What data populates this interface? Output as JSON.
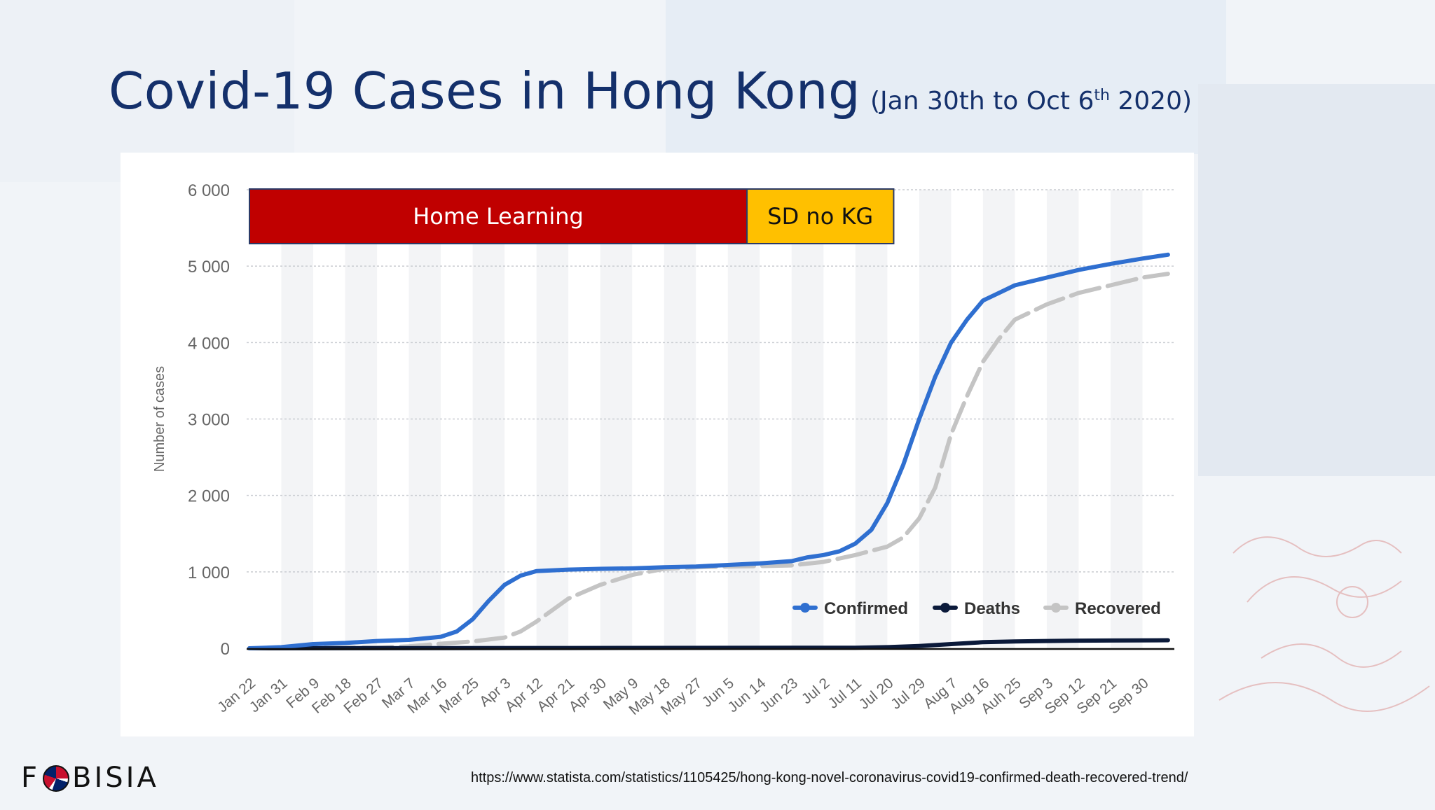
{
  "slide": {
    "title": "Covid-19 Cases in Hong Kong",
    "subtitle_main": "(Jan 30th to Oct 6",
    "subtitle_sup": "th",
    "subtitle_end": " 2020)",
    "logo_left": "F",
    "logo_right": "BISIA",
    "source_url": "https://www.statista.com/statistics/1105425/hong-kong-novel-coronavirus-covid19-confirmed-death-recovered-trend/"
  },
  "chart_data": {
    "type": "line",
    "title": "",
    "xlabel": "",
    "ylabel": "Number of cases",
    "ylim": [
      0,
      6000
    ],
    "y_ticks": [
      0,
      1000,
      2000,
      3000,
      4000,
      5000,
      6000
    ],
    "y_tick_labels": [
      "0",
      "1 000",
      "2 000",
      "3 000",
      "4 000",
      "5 000",
      "6 000"
    ],
    "categories": [
      "Jan 22",
      "Jan 31",
      "Feb 9",
      "Feb 18",
      "Feb 27",
      "Mar 7",
      "Mar 16",
      "Mar 25",
      "Apr 3",
      "Apr 12",
      "Apr 21",
      "Apr 30",
      "May 9",
      "May 18",
      "May 27",
      "Jun 5",
      "Jun 14",
      "Jun 23",
      "Jul 2",
      "Jul 11",
      "Jul 20",
      "Jul 29",
      "Aug 7",
      "Aug 16",
      "Auh 25",
      "Sep 3",
      "Sep 12",
      "Sep 21",
      "Sep 30"
    ],
    "series": [
      {
        "name": "Confirmed",
        "color": "#2f6fd0",
        "dash": false,
        "points": [
          [
            0,
            0
          ],
          [
            1,
            15
          ],
          [
            2,
            55
          ],
          [
            3,
            70
          ],
          [
            4,
            95
          ],
          [
            5,
            110
          ],
          [
            6,
            150
          ],
          [
            6.5,
            220
          ],
          [
            7,
            380
          ],
          [
            7.5,
            620
          ],
          [
            8,
            830
          ],
          [
            8.5,
            950
          ],
          [
            9,
            1010
          ],
          [
            10,
            1030
          ],
          [
            11,
            1040
          ],
          [
            12,
            1045
          ],
          [
            13,
            1060
          ],
          [
            14,
            1070
          ],
          [
            15,
            1090
          ],
          [
            16,
            1110
          ],
          [
            17,
            1140
          ],
          [
            17.5,
            1190
          ],
          [
            18,
            1220
          ],
          [
            18.5,
            1270
          ],
          [
            19,
            1370
          ],
          [
            19.5,
            1550
          ],
          [
            20,
            1900
          ],
          [
            20.5,
            2400
          ],
          [
            21,
            3000
          ],
          [
            21.5,
            3550
          ],
          [
            22,
            4000
          ],
          [
            22.5,
            4300
          ],
          [
            23,
            4550
          ],
          [
            23.5,
            4650
          ],
          [
            24,
            4750
          ],
          [
            25,
            4850
          ],
          [
            26,
            4950
          ],
          [
            27,
            5030
          ],
          [
            28,
            5100
          ],
          [
            28.8,
            5150
          ]
        ]
      },
      {
        "name": "Deaths",
        "color": "#0b1a3a",
        "dash": false,
        "points": [
          [
            0,
            0
          ],
          [
            6,
            2
          ],
          [
            10,
            4
          ],
          [
            17,
            6
          ],
          [
            19,
            7
          ],
          [
            20,
            15
          ],
          [
            21,
            30
          ],
          [
            22,
            55
          ],
          [
            23,
            80
          ],
          [
            24,
            90
          ],
          [
            25,
            95
          ],
          [
            26,
            100
          ],
          [
            27,
            102
          ],
          [
            28.8,
            105
          ]
        ]
      },
      {
        "name": "Recovered",
        "color": "#c4c4c4",
        "dash": true,
        "points": [
          [
            0,
            0
          ],
          [
            4,
            10
          ],
          [
            5,
            25
          ],
          [
            6,
            60
          ],
          [
            7,
            90
          ],
          [
            8,
            140
          ],
          [
            8.5,
            220
          ],
          [
            9,
            350
          ],
          [
            9.5,
            500
          ],
          [
            10,
            650
          ],
          [
            11,
            830
          ],
          [
            12,
            960
          ],
          [
            13,
            1040
          ],
          [
            14,
            1060
          ],
          [
            15,
            1070
          ],
          [
            16,
            1075
          ],
          [
            17,
            1085
          ],
          [
            18,
            1130
          ],
          [
            19,
            1220
          ],
          [
            20,
            1330
          ],
          [
            20.5,
            1450
          ],
          [
            21,
            1700
          ],
          [
            21.5,
            2100
          ],
          [
            22,
            2800
          ],
          [
            22.5,
            3300
          ],
          [
            23,
            3750
          ],
          [
            23.5,
            4050
          ],
          [
            24,
            4300
          ],
          [
            25,
            4500
          ],
          [
            26,
            4650
          ],
          [
            27,
            4750
          ],
          [
            28,
            4850
          ],
          [
            28.8,
            4900
          ]
        ]
      }
    ],
    "legend_position": "bottom-right",
    "grid": true,
    "annotations": [
      {
        "label": "Home Learning",
        "color": "#c00000",
        "text_color": "#ffffff",
        "x_start": 0,
        "x_end": 15.6
      },
      {
        "label": "SD no KG",
        "color": "#ffc000",
        "text_color": "#111111",
        "x_start": 15.6,
        "x_end": 20.2
      }
    ]
  }
}
